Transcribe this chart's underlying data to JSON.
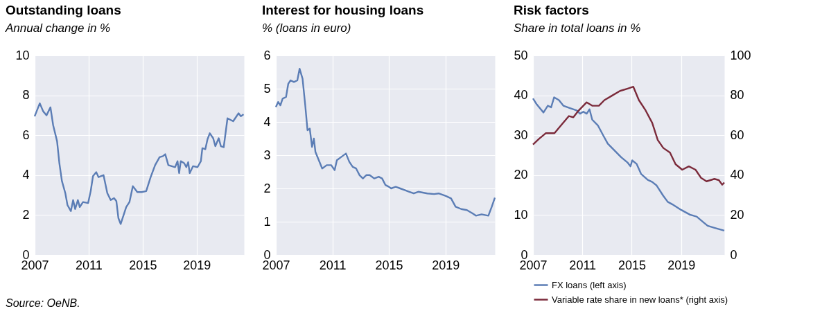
{
  "chart_data": [
    {
      "type": "line",
      "title": "Outstanding loans",
      "subtitle": "Annual change in %",
      "annotations": [
        "Source: OeNB."
      ],
      "xlim": [
        2007,
        2022.5
      ],
      "xticks": [
        2007,
        2011,
        2015,
        2019
      ],
      "ylim": [
        0,
        10
      ],
      "yticks": [
        0,
        2,
        4,
        6,
        8,
        10
      ],
      "grid": true,
      "legend": false,
      "series": [
        {
          "color": "#5b7db5",
          "x": [
            2007.0,
            2007.38,
            2007.63,
            2007.88,
            2008.17,
            2008.37,
            2008.66,
            2008.83,
            2009.02,
            2009.27,
            2009.43,
            2009.68,
            2009.85,
            2010.0,
            2010.2,
            2010.34,
            2010.58,
            2010.96,
            2011.15,
            2011.32,
            2011.56,
            2011.73,
            2012.1,
            2012.38,
            2012.63,
            2012.88,
            2013.05,
            2013.2,
            2013.37,
            2013.78,
            2014.02,
            2014.27,
            2014.6,
            2014.93,
            2015.26,
            2015.59,
            2015.92,
            2016.25,
            2016.5,
            2016.67,
            2016.9,
            2017.4,
            2017.58,
            2017.7,
            2017.82,
            2018.07,
            2018.23,
            2018.37,
            2018.48,
            2018.73,
            2019.06,
            2019.31,
            2019.42,
            2019.64,
            2019.8,
            2019.97,
            2020.22,
            2020.38,
            2020.63,
            2020.79,
            2021.0,
            2021.28,
            2021.7,
            2022.1,
            2022.27,
            2022.47
          ],
          "values": [
            6.95,
            7.6,
            7.2,
            7.0,
            7.4,
            6.5,
            5.7,
            4.6,
            3.7,
            3.1,
            2.5,
            2.2,
            2.75,
            2.3,
            2.75,
            2.4,
            2.65,
            2.6,
            3.2,
            3.95,
            4.15,
            3.9,
            4.0,
            3.1,
            2.75,
            2.85,
            2.7,
            1.85,
            1.55,
            2.4,
            2.65,
            3.45,
            3.15,
            3.15,
            3.2,
            3.9,
            4.5,
            4.9,
            4.95,
            5.05,
            4.5,
            4.4,
            4.7,
            4.1,
            4.7,
            4.6,
            4.4,
            4.65,
            4.1,
            4.45,
            4.4,
            4.7,
            5.35,
            5.3,
            5.8,
            6.1,
            5.85,
            5.45,
            5.85,
            5.45,
            5.4,
            6.85,
            6.7,
            7.1,
            6.95,
            7.05
          ]
        }
      ]
    },
    {
      "type": "line",
      "title": "Interest for housing loans",
      "subtitle": "% (loans in euro)",
      "xlim": [
        2007,
        2022.5
      ],
      "xticks": [
        2007,
        2011,
        2015,
        2019
      ],
      "ylim": [
        0,
        6
      ],
      "yticks": [
        0,
        1,
        2,
        3,
        4,
        5,
        6
      ],
      "grid": true,
      "legend": false,
      "series": [
        {
          "color": "#5b7db5",
          "x": [
            2007.0,
            2007.16,
            2007.32,
            2007.48,
            2007.72,
            2007.88,
            2008.04,
            2008.28,
            2008.52,
            2008.68,
            2008.89,
            2009.08,
            2009.24,
            2009.4,
            2009.56,
            2009.69,
            2009.8,
            2010.04,
            2010.28,
            2010.6,
            2010.92,
            2011.16,
            2011.32,
            2011.64,
            2011.96,
            2012.2,
            2012.44,
            2012.68,
            2012.92,
            2013.16,
            2013.4,
            2013.64,
            2013.96,
            2014.28,
            2014.52,
            2014.76,
            2015.0,
            2015.16,
            2015.48,
            2015.8,
            2016.12,
            2016.44,
            2016.76,
            2017.08,
            2017.72,
            2018.2,
            2018.52,
            2019.0,
            2019.4,
            2019.72,
            2020.12,
            2020.52,
            2020.92,
            2021.16,
            2021.56,
            2022.04,
            2022.28,
            2022.5
          ],
          "values": [
            4.45,
            4.6,
            4.5,
            4.7,
            4.75,
            5.15,
            5.25,
            5.2,
            5.25,
            5.6,
            5.3,
            4.5,
            3.75,
            3.8,
            3.25,
            3.5,
            3.1,
            2.85,
            2.6,
            2.7,
            2.7,
            2.55,
            2.85,
            2.95,
            3.05,
            2.8,
            2.65,
            2.6,
            2.4,
            2.3,
            2.4,
            2.4,
            2.3,
            2.35,
            2.3,
            2.1,
            2.05,
            2.0,
            2.05,
            2.0,
            1.95,
            1.9,
            1.85,
            1.9,
            1.85,
            1.83,
            1.85,
            1.78,
            1.7,
            1.45,
            1.38,
            1.35,
            1.25,
            1.18,
            1.22,
            1.18,
            1.45,
            1.72
          ]
        }
      ]
    },
    {
      "type": "line",
      "title": "Risk factors",
      "subtitle": "Share in total loans in %",
      "xlim": [
        2007,
        2022.5
      ],
      "xticks": [
        2007,
        2011,
        2015,
        2019
      ],
      "ylim": [
        0,
        50
      ],
      "yticks": [
        0,
        10,
        20,
        30,
        40,
        50
      ],
      "y2lim": [
        0,
        100
      ],
      "y2ticks": [
        0,
        20,
        40,
        60,
        80,
        100
      ],
      "grid": true,
      "legend": "bottom",
      "series": [
        {
          "name": "FX loans (left axis)",
          "color": "#5b7db5",
          "x": [
            2007.0,
            2007.31,
            2007.85,
            2008.2,
            2008.47,
            2008.71,
            2009.1,
            2009.46,
            2010.0,
            2010.54,
            2010.81,
            2011.08,
            2011.35,
            2011.58,
            2011.8,
            2012.25,
            2012.7,
            2013.06,
            2013.6,
            2014.14,
            2014.68,
            2014.9,
            2015.04,
            2015.4,
            2015.76,
            2016.3,
            2016.66,
            2017.02,
            2017.56,
            2017.92,
            2018.28,
            2019.0,
            2019.72,
            2020.26,
            2021.15,
            2021.7,
            2022.5
          ],
          "values": [
            39.2,
            37.7,
            35.7,
            37.4,
            37.0,
            39.5,
            38.8,
            37.4,
            36.8,
            36.2,
            35.4,
            35.9,
            35.4,
            36.5,
            33.9,
            32.5,
            29.9,
            27.9,
            26.2,
            24.5,
            23.1,
            22.2,
            23.7,
            22.8,
            20.3,
            18.8,
            18.3,
            17.4,
            14.8,
            13.3,
            12.7,
            11.3,
            10.1,
            9.6,
            7.3,
            6.8,
            6.1
          ]
        },
        {
          "name": "Variable rate share in new loans* (right axis)",
          "color": "#7b2a3a",
          "axis": "y2",
          "x": [
            2007.0,
            2007.49,
            2008.03,
            2008.74,
            2009.28,
            2009.91,
            2010.27,
            2010.63,
            2011.35,
            2011.8,
            2012.34,
            2012.79,
            2013.42,
            2014.05,
            2014.68,
            2015.13,
            2015.58,
            2016.12,
            2016.66,
            2017.11,
            2017.56,
            2018.1,
            2018.55,
            2019.09,
            2019.63,
            2020.17,
            2020.62,
            2021.06,
            2021.7,
            2022.06,
            2022.33,
            2022.5
          ],
          "values": [
            55.3,
            58.2,
            61.0,
            61.0,
            65.0,
            69.6,
            69.0,
            71.9,
            76.5,
            74.8,
            74.8,
            77.6,
            79.9,
            82.2,
            83.4,
            84.3,
            77.6,
            72.5,
            66.2,
            57.6,
            53.6,
            51.3,
            45.5,
            42.7,
            44.4,
            42.7,
            38.6,
            36.9,
            38.1,
            37.5,
            35.2,
            36.3
          ]
        }
      ]
    }
  ]
}
